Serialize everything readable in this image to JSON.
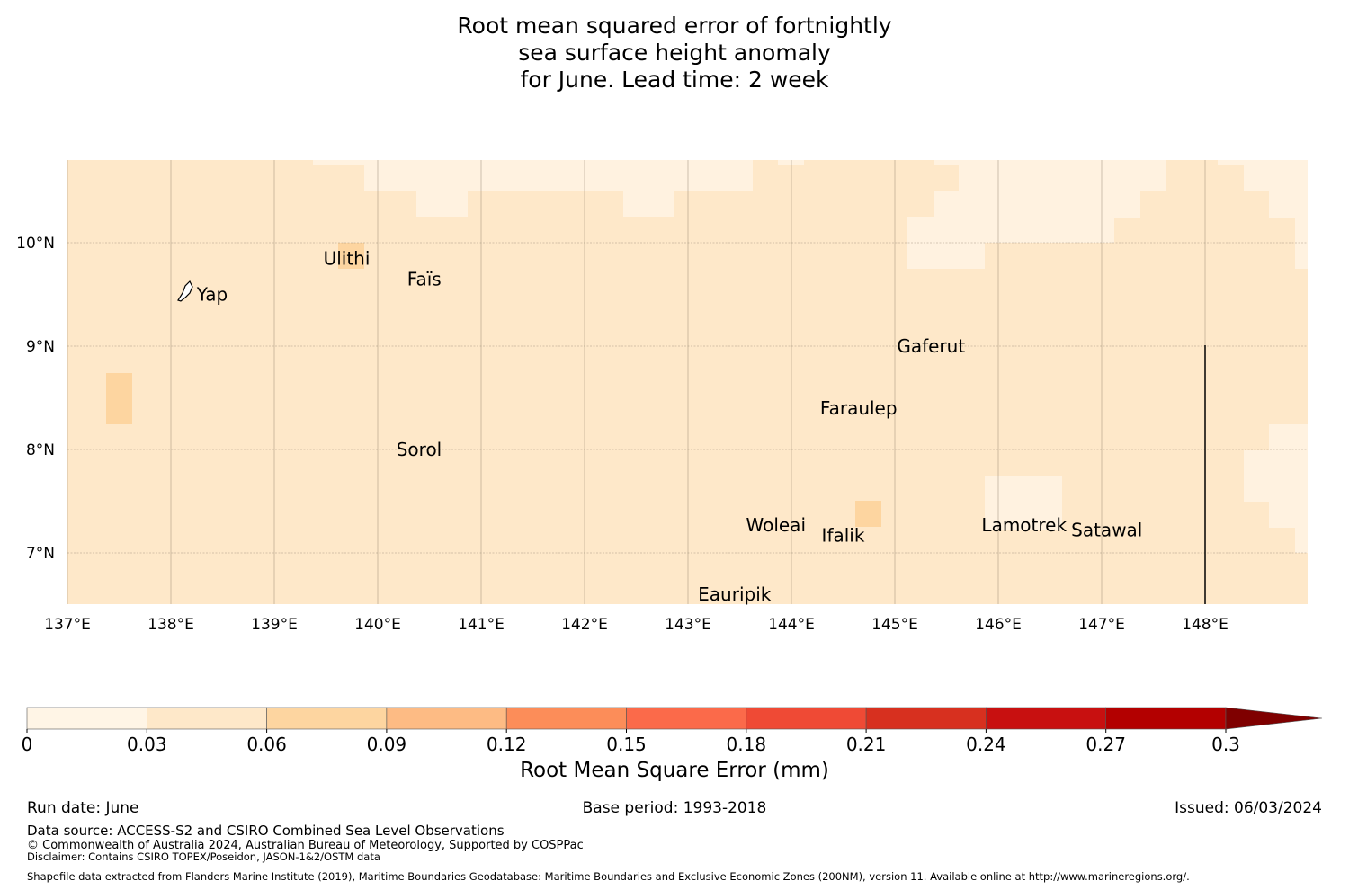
{
  "title": {
    "line1": "Root mean squared error of fortnightly",
    "line2": "sea surface height anomaly",
    "line3": "for June. Lead time: 2 week"
  },
  "map": {
    "lon_range": [
      137,
      149
    ],
    "lat_range": [
      6.5,
      10.8
    ],
    "x_ticks": [
      "137°E",
      "138°E",
      "139°E",
      "140°E",
      "141°E",
      "142°E",
      "143°E",
      "144°E",
      "145°E",
      "146°E",
      "147°E",
      "148°E"
    ],
    "y_ticks": [
      "10°N",
      "9°N",
      "8°N",
      "7°N"
    ],
    "grid": true,
    "background_category": "0.03-0.06",
    "places": [
      {
        "name": "Yap",
        "lon": 138.4,
        "lat": 9.5
      },
      {
        "name": "Ulithi",
        "lon": 139.7,
        "lat": 9.85
      },
      {
        "name": "Faïs",
        "lon": 140.45,
        "lat": 9.65
      },
      {
        "name": "Gaferut",
        "lon": 145.35,
        "lat": 9.0
      },
      {
        "name": "Faraulep",
        "lon": 144.65,
        "lat": 8.4
      },
      {
        "name": "Sorol",
        "lon": 140.4,
        "lat": 8.0
      },
      {
        "name": "Woleai",
        "lon": 143.85,
        "lat": 7.27
      },
      {
        "name": "Ifalik",
        "lon": 144.5,
        "lat": 7.17
      },
      {
        "name": "Lamotrek",
        "lon": 146.25,
        "lat": 7.27
      },
      {
        "name": "Satawal",
        "lon": 147.05,
        "lat": 7.22
      },
      {
        "name": "Eauripik",
        "lon": 143.45,
        "lat": 6.6
      }
    ],
    "boundary_line": {
      "lon": 148.0,
      "lat_from": 9.0,
      "lat_to": 6.5
    }
  },
  "colorbar": {
    "label": "Root Mean Square Error (mm)",
    "ticks": [
      "0",
      "0.03",
      "0.06",
      "0.09",
      "0.12",
      "0.15",
      "0.18",
      "0.21",
      "0.24",
      "0.27",
      "0.3"
    ],
    "colors": [
      "#fff5e6",
      "#fee8c9",
      "#fdd5a0",
      "#fdbb84",
      "#fc8d59",
      "#fb6a4a",
      "#ef4a35",
      "#d7301f",
      "#c81010",
      "#b30000",
      "#7f0000"
    ]
  },
  "footer": {
    "run_date": "Run date: June",
    "base_period": "Base period: 1993-2018",
    "issued": "Issued: 06/03/2024",
    "data_source": "Data source: ACCESS-S2 and CSIRO Combined Sea Level Observations",
    "copyright": "© Commonwealth of Australia 2024, Australian Bureau of Meteorology, Supported by COSPPac",
    "disclaimer": "Disclaimer: Contains CSIRO TOPEX/Poseidon, JASON-1&2/OSTM data",
    "shapefile": "Shapefile data extracted from Flanders Marine Institute (2019), Maritime Boundaries Geodatabase: Maritime Boundaries and Exclusive Economic Zones (200NM), version 11. Available online at http://www.marineregions.org/."
  }
}
